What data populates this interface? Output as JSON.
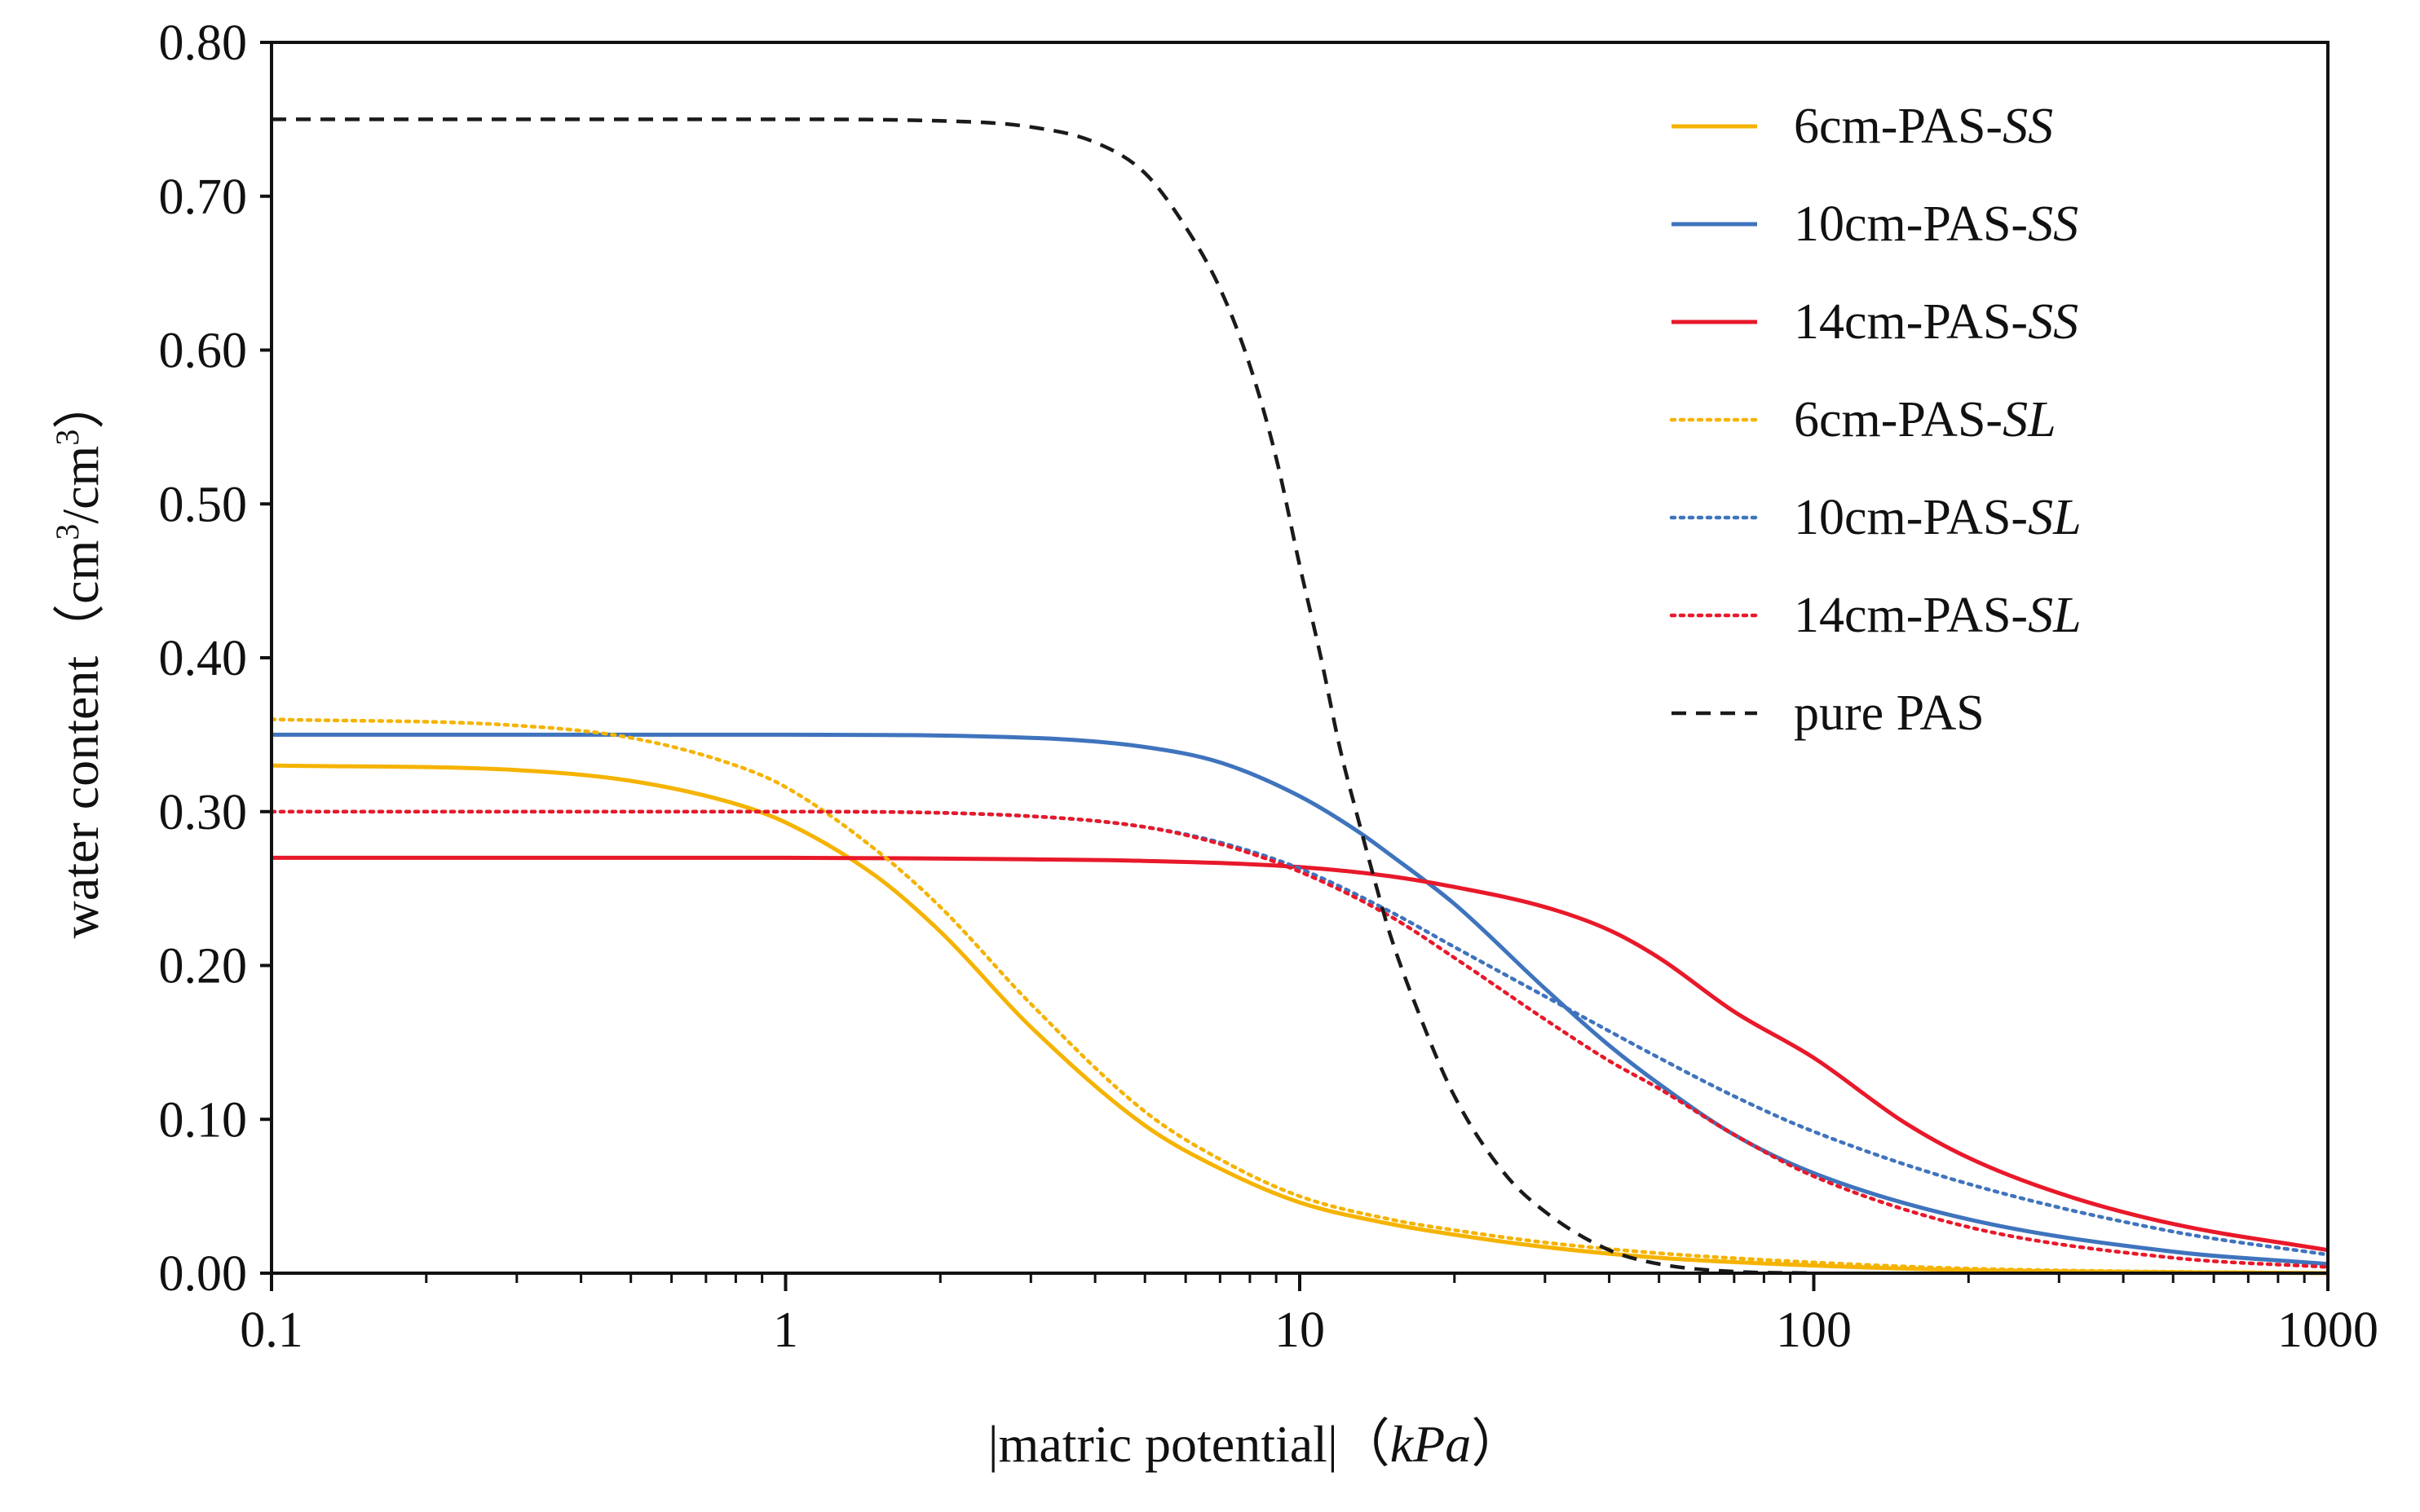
{
  "chart_data": {
    "type": "line",
    "title": "",
    "xlabel": {
      "bar_left": "|",
      "text": "matric potential",
      "bar_right": "|",
      "paren_open": "（",
      "unit": "kPa",
      "paren_close": "）"
    },
    "ylabel": {
      "text": "water content（cm",
      "sup1": "3",
      "mid": "/cm",
      "sup2": "3",
      "end": "）"
    },
    "x_scale": "log",
    "xlim": [
      0.1,
      1000
    ],
    "ylim": [
      0.0,
      0.8
    ],
    "x_ticks": [
      {
        "value": 0.1,
        "label": "0.1"
      },
      {
        "value": 1,
        "label": "1"
      },
      {
        "value": 10,
        "label": "10"
      },
      {
        "value": 100,
        "label": "100"
      },
      {
        "value": 1000,
        "label": "1000"
      }
    ],
    "y_ticks": [
      {
        "value": 0.0,
        "label": "0.00"
      },
      {
        "value": 0.1,
        "label": "0.10"
      },
      {
        "value": 0.2,
        "label": "0.20"
      },
      {
        "value": 0.3,
        "label": "0.30"
      },
      {
        "value": 0.4,
        "label": "0.40"
      },
      {
        "value": 0.5,
        "label": "0.50"
      },
      {
        "value": 0.6,
        "label": "0.60"
      },
      {
        "value": 0.7,
        "label": "0.70"
      },
      {
        "value": 0.8,
        "label": "0.80"
      }
    ],
    "legend_position": "top-right",
    "series": [
      {
        "name": "6cm-PAS-SS",
        "label_prefix": "6cm-PAS-",
        "label_suffix": "SS",
        "color": "#F5B301",
        "style": "solid",
        "x": [
          0.1,
          0.3,
          0.5,
          0.8,
          1,
          1.5,
          2,
          3,
          5,
          7,
          10,
          15,
          20,
          30,
          50,
          100,
          200,
          1000
        ],
        "y": [
          0.33,
          0.327,
          0.32,
          0.305,
          0.293,
          0.258,
          0.222,
          0.16,
          0.096,
          0.068,
          0.046,
          0.032,
          0.025,
          0.017,
          0.01,
          0.005,
          0.002,
          0.0
        ]
      },
      {
        "name": "10cm-PAS-SS",
        "label_prefix": "10cm-PAS-",
        "label_suffix": "SS",
        "color": "#3F74BD",
        "style": "solid",
        "x": [
          0.1,
          1,
          3,
          5,
          7,
          10,
          13,
          15,
          20,
          30,
          40,
          50,
          70,
          100,
          200,
          500,
          1000
        ],
        "y": [
          0.35,
          0.35,
          0.348,
          0.342,
          0.332,
          0.31,
          0.287,
          0.272,
          0.24,
          0.185,
          0.148,
          0.123,
          0.09,
          0.065,
          0.035,
          0.014,
          0.006
        ]
      },
      {
        "name": "14cm-PAS-SS",
        "label_prefix": "14cm-PAS-",
        "label_suffix": "SS",
        "color": "#E8192A",
        "style": "solid",
        "x": [
          0.1,
          1,
          3,
          5,
          10,
          15,
          20,
          30,
          40,
          50,
          70,
          100,
          150,
          200,
          300,
          500,
          1000
        ],
        "y": [
          0.27,
          0.27,
          0.269,
          0.268,
          0.264,
          0.258,
          0.251,
          0.238,
          0.223,
          0.205,
          0.17,
          0.14,
          0.098,
          0.075,
          0.052,
          0.032,
          0.015
        ]
      },
      {
        "name": "6cm-PAS-SL",
        "label_prefix": "6cm-PAS-",
        "label_suffix": "SL",
        "color": "#F5B301",
        "style": "dotted",
        "x": [
          0.1,
          0.3,
          0.5,
          0.8,
          1,
          1.5,
          2,
          3,
          5,
          7,
          10,
          15,
          20,
          30,
          50,
          100,
          200,
          1000
        ],
        "y": [
          0.36,
          0.356,
          0.348,
          0.33,
          0.316,
          0.275,
          0.238,
          0.175,
          0.105,
          0.074,
          0.05,
          0.035,
          0.028,
          0.02,
          0.013,
          0.007,
          0.003,
          0.0
        ]
      },
      {
        "name": "10cm-PAS-SL",
        "label_prefix": "10cm-PAS-",
        "label_suffix": "SL",
        "color": "#3F74BD",
        "style": "dotted",
        "x": [
          0.1,
          1,
          3,
          5,
          7,
          10,
          15,
          20,
          30,
          50,
          70,
          100,
          200,
          500,
          1000
        ],
        "y": [
          0.3,
          0.3,
          0.297,
          0.29,
          0.28,
          0.263,
          0.235,
          0.212,
          0.18,
          0.14,
          0.115,
          0.092,
          0.058,
          0.027,
          0.012
        ]
      },
      {
        "name": "14cm-PAS-SL",
        "label_prefix": "14cm-PAS-",
        "label_suffix": "SL",
        "color": "#E8192A",
        "style": "dotted",
        "x": [
          0.1,
          1,
          3,
          5,
          7,
          10,
          15,
          20,
          30,
          40,
          50,
          70,
          100,
          200,
          500,
          1000
        ],
        "y": [
          0.3,
          0.3,
          0.297,
          0.29,
          0.279,
          0.261,
          0.232,
          0.205,
          0.165,
          0.138,
          0.12,
          0.09,
          0.063,
          0.03,
          0.01,
          0.004
        ]
      },
      {
        "name": "pure PAS",
        "label_prefix": "pure PAS",
        "label_suffix": "",
        "color": "#1A1A1A",
        "style": "dashed",
        "x": [
          0.1,
          1,
          2,
          3,
          4,
          5,
          6,
          7,
          8,
          9,
          10,
          11,
          12,
          13,
          14,
          15,
          17,
          20,
          25,
          30,
          40,
          50,
          70,
          100
        ],
        "y": [
          0.75,
          0.75,
          0.749,
          0.745,
          0.735,
          0.715,
          0.68,
          0.64,
          0.59,
          0.53,
          0.46,
          0.4,
          0.34,
          0.295,
          0.255,
          0.22,
          0.17,
          0.115,
          0.065,
          0.04,
          0.015,
          0.006,
          0.001,
          0.0
        ]
      }
    ]
  }
}
